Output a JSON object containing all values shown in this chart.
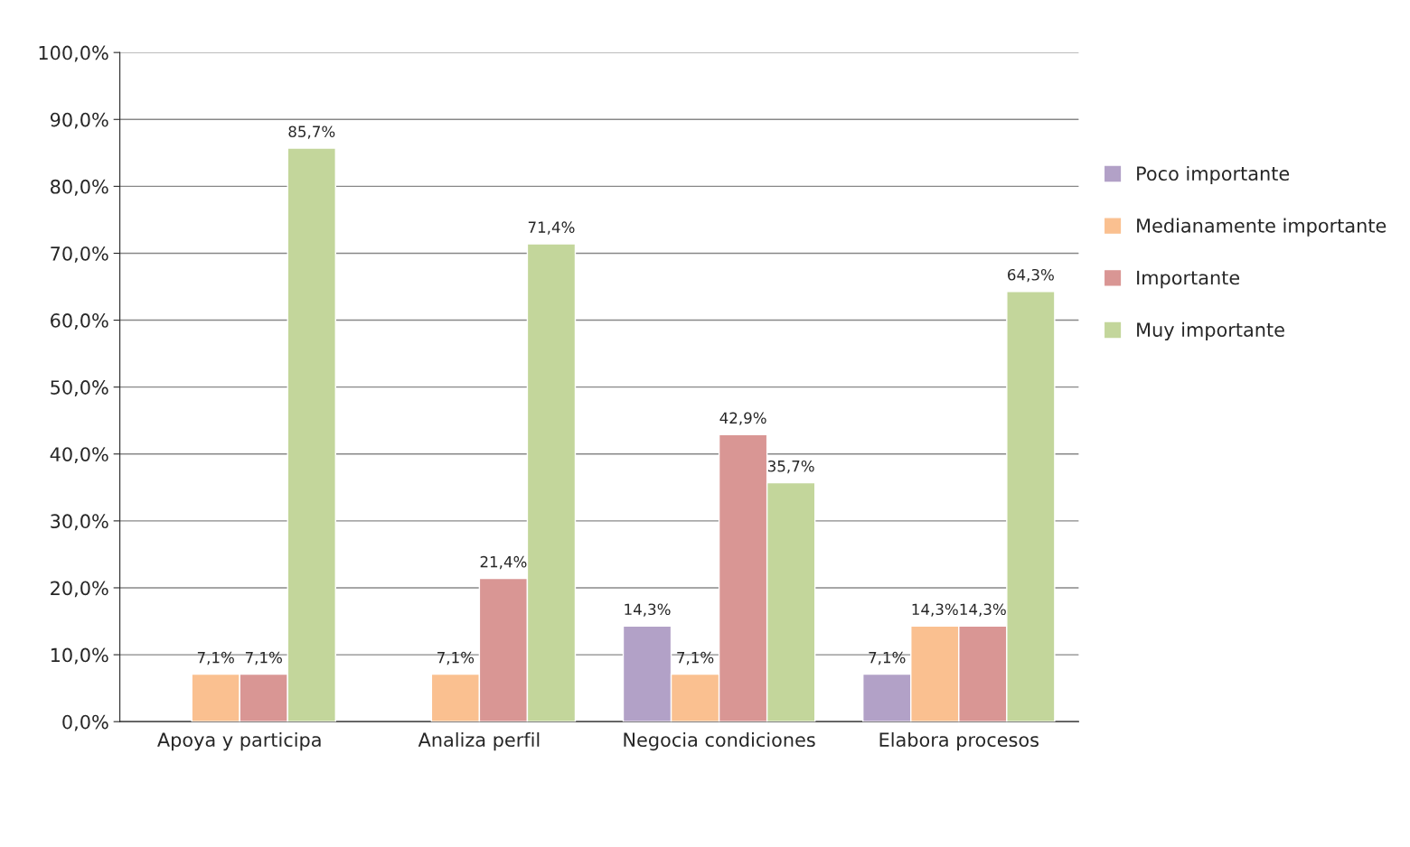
{
  "chart_data": {
    "type": "bar",
    "categories": [
      "Apoya y participa",
      "Analiza perfil",
      "Negocia condiciones",
      "Elabora procesos"
    ],
    "series": [
      {
        "name": "Poco importante",
        "color": "#b2a1c7",
        "values": [
          null,
          null,
          14.3,
          7.1
        ],
        "value_labels": [
          null,
          null,
          "14,3%",
          "7,1%"
        ]
      },
      {
        "name": "Medianamente importante",
        "color": "#fac090",
        "values": [
          7.1,
          7.1,
          7.1,
          14.3
        ],
        "value_labels": [
          "7,1%",
          "7,1%",
          "7,1%",
          "14,3%"
        ]
      },
      {
        "name": "Importante",
        "color": "#d99694",
        "values": [
          7.1,
          21.4,
          42.9,
          14.3
        ],
        "value_labels": [
          "7,1%",
          "21,4%",
          "42,9%",
          "14,3%"
        ]
      },
      {
        "name": "Muy importante",
        "color": "#c3d69b",
        "values": [
          85.7,
          71.4,
          35.7,
          64.3
        ],
        "value_labels": [
          "85,7%",
          "71,4%",
          "35,7%",
          "64,3%"
        ]
      }
    ],
    "ylim": [
      0,
      100
    ],
    "yticks": [
      {
        "value": 0,
        "label": "0,0%"
      },
      {
        "value": 10,
        "label": "10,0%"
      },
      {
        "value": 20,
        "label": "20,0%"
      },
      {
        "value": 30,
        "label": "30,0%"
      },
      {
        "value": 40,
        "label": "40,0%"
      },
      {
        "value": 50,
        "label": "50,0%"
      },
      {
        "value": 60,
        "label": "60,0%"
      },
      {
        "value": 70,
        "label": "70,0%"
      },
      {
        "value": 80,
        "label": "80,0%"
      },
      {
        "value": 90,
        "label": "90,0%"
      },
      {
        "value": 100,
        "label": "100,0%"
      }
    ],
    "grid": "y",
    "legend": "right"
  }
}
